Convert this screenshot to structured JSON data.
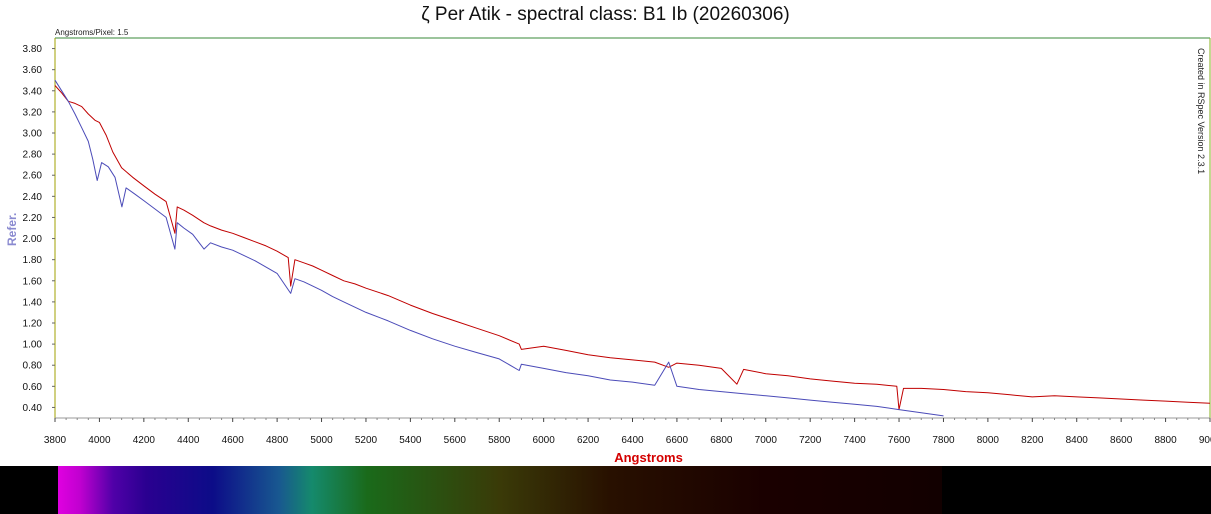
{
  "title": "ζ Per Atik - spectral class: B1 Ib (20260306)",
  "scale_note": "Angstroms/Pixel: 1.5",
  "watermark": "Created in RSpec Version 2.3.1",
  "chart_data": {
    "type": "line",
    "title": "ζ Per Atik - spectral class: B1 Ib (20260306)",
    "xlabel": "Angstroms",
    "ylabel": "Refer.",
    "xlim": [
      3800,
      9000
    ],
    "ylim": [
      0.3,
      3.9
    ],
    "x_ticks": [
      3800,
      4000,
      4200,
      4400,
      4600,
      4800,
      5000,
      5200,
      5400,
      5600,
      5800,
      6000,
      6200,
      6400,
      6600,
      6800,
      7000,
      7200,
      7400,
      7600,
      7800,
      8000,
      8200,
      8400,
      8600,
      8800,
      9000
    ],
    "y_ticks": [
      0.4,
      0.6,
      0.8,
      1.0,
      1.2,
      1.4,
      1.6,
      1.8,
      2.0,
      2.2,
      2.4,
      2.6,
      2.8,
      3.0,
      3.2,
      3.4,
      3.6,
      3.8
    ],
    "xlabel_color": "#d40000",
    "ylabel_color": "#8a8ad0",
    "grid": false,
    "series": [
      {
        "color": "#c00000",
        "x": [
          3800,
          3830,
          3860,
          3890,
          3920,
          3950,
          3980,
          4000,
          4030,
          4060,
          4100,
          4150,
          4200,
          4250,
          4300,
          4340,
          4350,
          4380,
          4420,
          4470,
          4500,
          4550,
          4600,
          4650,
          4700,
          4750,
          4800,
          4850,
          4861,
          4880,
          4920,
          4960,
          5000,
          5050,
          5100,
          5150,
          5200,
          5300,
          5400,
          5500,
          5600,
          5700,
          5800,
          5890,
          5900,
          6000,
          6100,
          6200,
          6300,
          6400,
          6500,
          6563,
          6600,
          6700,
          6800,
          6870,
          6900,
          7000,
          7100,
          7200,
          7300,
          7400,
          7500,
          7590,
          7600,
          7620,
          7700,
          7800,
          7900,
          8000,
          8100,
          8200,
          8300,
          8400,
          8500,
          8600,
          8700,
          8800,
          8900,
          9000
        ],
        "values": [
          3.45,
          3.38,
          3.3,
          3.28,
          3.25,
          3.18,
          3.12,
          3.1,
          2.98,
          2.82,
          2.67,
          2.58,
          2.5,
          2.42,
          2.35,
          2.05,
          2.3,
          2.27,
          2.22,
          2.15,
          2.12,
          2.08,
          2.05,
          2.01,
          1.97,
          1.93,
          1.88,
          1.82,
          1.55,
          1.8,
          1.77,
          1.74,
          1.7,
          1.65,
          1.6,
          1.57,
          1.53,
          1.46,
          1.37,
          1.29,
          1.22,
          1.15,
          1.08,
          1.0,
          0.95,
          0.98,
          0.94,
          0.9,
          0.87,
          0.85,
          0.83,
          0.78,
          0.82,
          0.8,
          0.77,
          0.62,
          0.76,
          0.72,
          0.7,
          0.67,
          0.65,
          0.63,
          0.62,
          0.6,
          0.38,
          0.58,
          0.58,
          0.57,
          0.55,
          0.54,
          0.52,
          0.5,
          0.51,
          0.5,
          0.49,
          0.48,
          0.47,
          0.46,
          0.45,
          0.44
        ]
      },
      {
        "color": "#4b4bb8",
        "x": [
          3800,
          3830,
          3860,
          3890,
          3920,
          3950,
          3970,
          3990,
          4010,
          4040,
          4070,
          4101,
          4120,
          4160,
          4200,
          4250,
          4300,
          4340,
          4350,
          4380,
          4420,
          4471,
          4500,
          4550,
          4600,
          4650,
          4700,
          4750,
          4800,
          4861,
          4880,
          4920,
          4960,
          5000,
          5050,
          5100,
          5150,
          5200,
          5300,
          5400,
          5500,
          5600,
          5700,
          5800,
          5890,
          5900,
          6000,
          6100,
          6200,
          6300,
          6400,
          6500,
          6563,
          6600,
          6700,
          6800,
          6900,
          7000,
          7100,
          7200,
          7300,
          7400,
          7500,
          7600,
          7700,
          7800
        ],
        "values": [
          3.5,
          3.4,
          3.3,
          3.18,
          3.05,
          2.92,
          2.75,
          2.55,
          2.72,
          2.68,
          2.58,
          2.3,
          2.48,
          2.42,
          2.36,
          2.28,
          2.2,
          1.9,
          2.15,
          2.1,
          2.04,
          1.9,
          1.96,
          1.92,
          1.89,
          1.84,
          1.79,
          1.73,
          1.67,
          1.48,
          1.62,
          1.59,
          1.55,
          1.51,
          1.45,
          1.4,
          1.35,
          1.3,
          1.22,
          1.13,
          1.05,
          0.98,
          0.92,
          0.86,
          0.75,
          0.81,
          0.77,
          0.73,
          0.7,
          0.66,
          0.64,
          0.61,
          0.83,
          0.6,
          0.57,
          0.55,
          0.53,
          0.51,
          0.49,
          0.47,
          0.45,
          0.43,
          0.41,
          0.38,
          0.35,
          0.32
        ]
      }
    ]
  },
  "spectrum": {
    "range": [
      3800,
      7800
    ],
    "stops": [
      {
        "angstrom": 3800,
        "color": "#e000e0"
      },
      {
        "angstrom": 3900,
        "color": "#c000d0"
      },
      {
        "angstrom": 4050,
        "color": "#5000a8"
      },
      {
        "angstrom": 4200,
        "color": "#2a0090"
      },
      {
        "angstrom": 4500,
        "color": "#0c0c88"
      },
      {
        "angstrom": 4800,
        "color": "#185890"
      },
      {
        "angstrom": 4950,
        "color": "#158a6c"
      },
      {
        "angstrom": 5200,
        "color": "#1a6a1a"
      },
      {
        "angstrom": 5800,
        "color": "#3a3a08"
      },
      {
        "angstrom": 6300,
        "color": "#281000"
      },
      {
        "angstrom": 7000,
        "color": "#1a0000"
      },
      {
        "angstrom": 7800,
        "color": "#120000"
      }
    ]
  }
}
